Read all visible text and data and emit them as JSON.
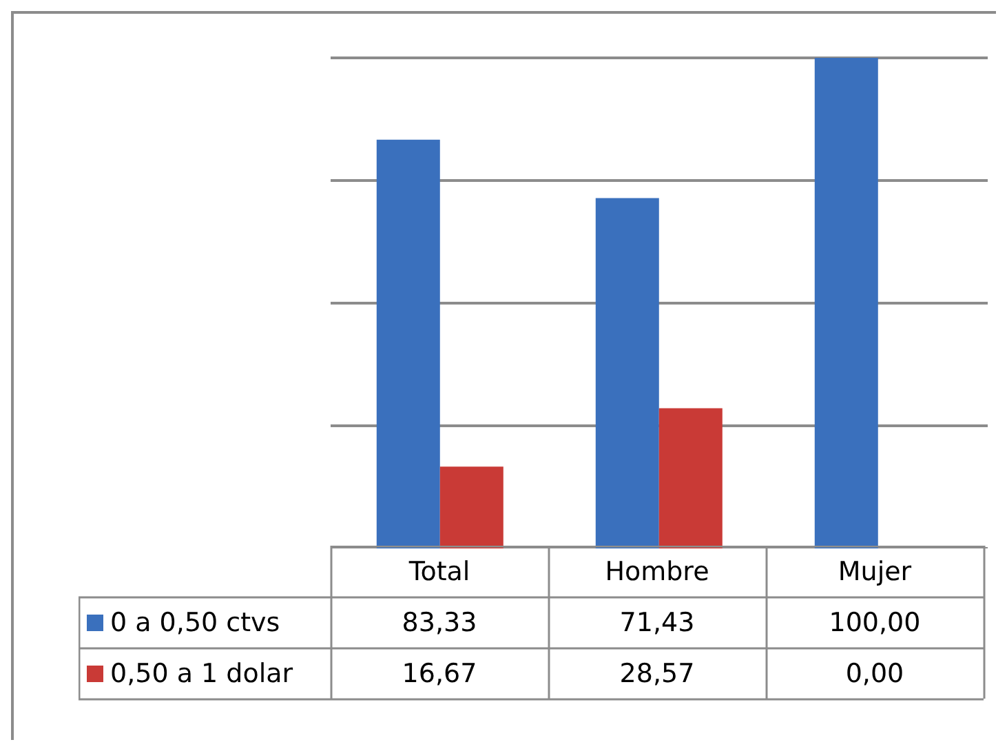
{
  "chart_data": {
    "type": "bar",
    "categories": [
      "Total",
      "Hombre",
      "Mujer"
    ],
    "series": [
      {
        "name": "0 a 0,50 ctvs",
        "color": "#3a70bd",
        "values": [
          83.33,
          71.43,
          100.0
        ],
        "value_labels": [
          "83,33",
          "71,43",
          "100,00"
        ]
      },
      {
        "name": "0,50 a 1 dolar",
        "color": "#c93a36",
        "values": [
          16.67,
          28.57,
          0.0
        ],
        "value_labels": [
          "16,67",
          "28,57",
          "0,00"
        ]
      }
    ],
    "grid": "y",
    "tick_labels": false,
    "legend": "bottom"
  }
}
